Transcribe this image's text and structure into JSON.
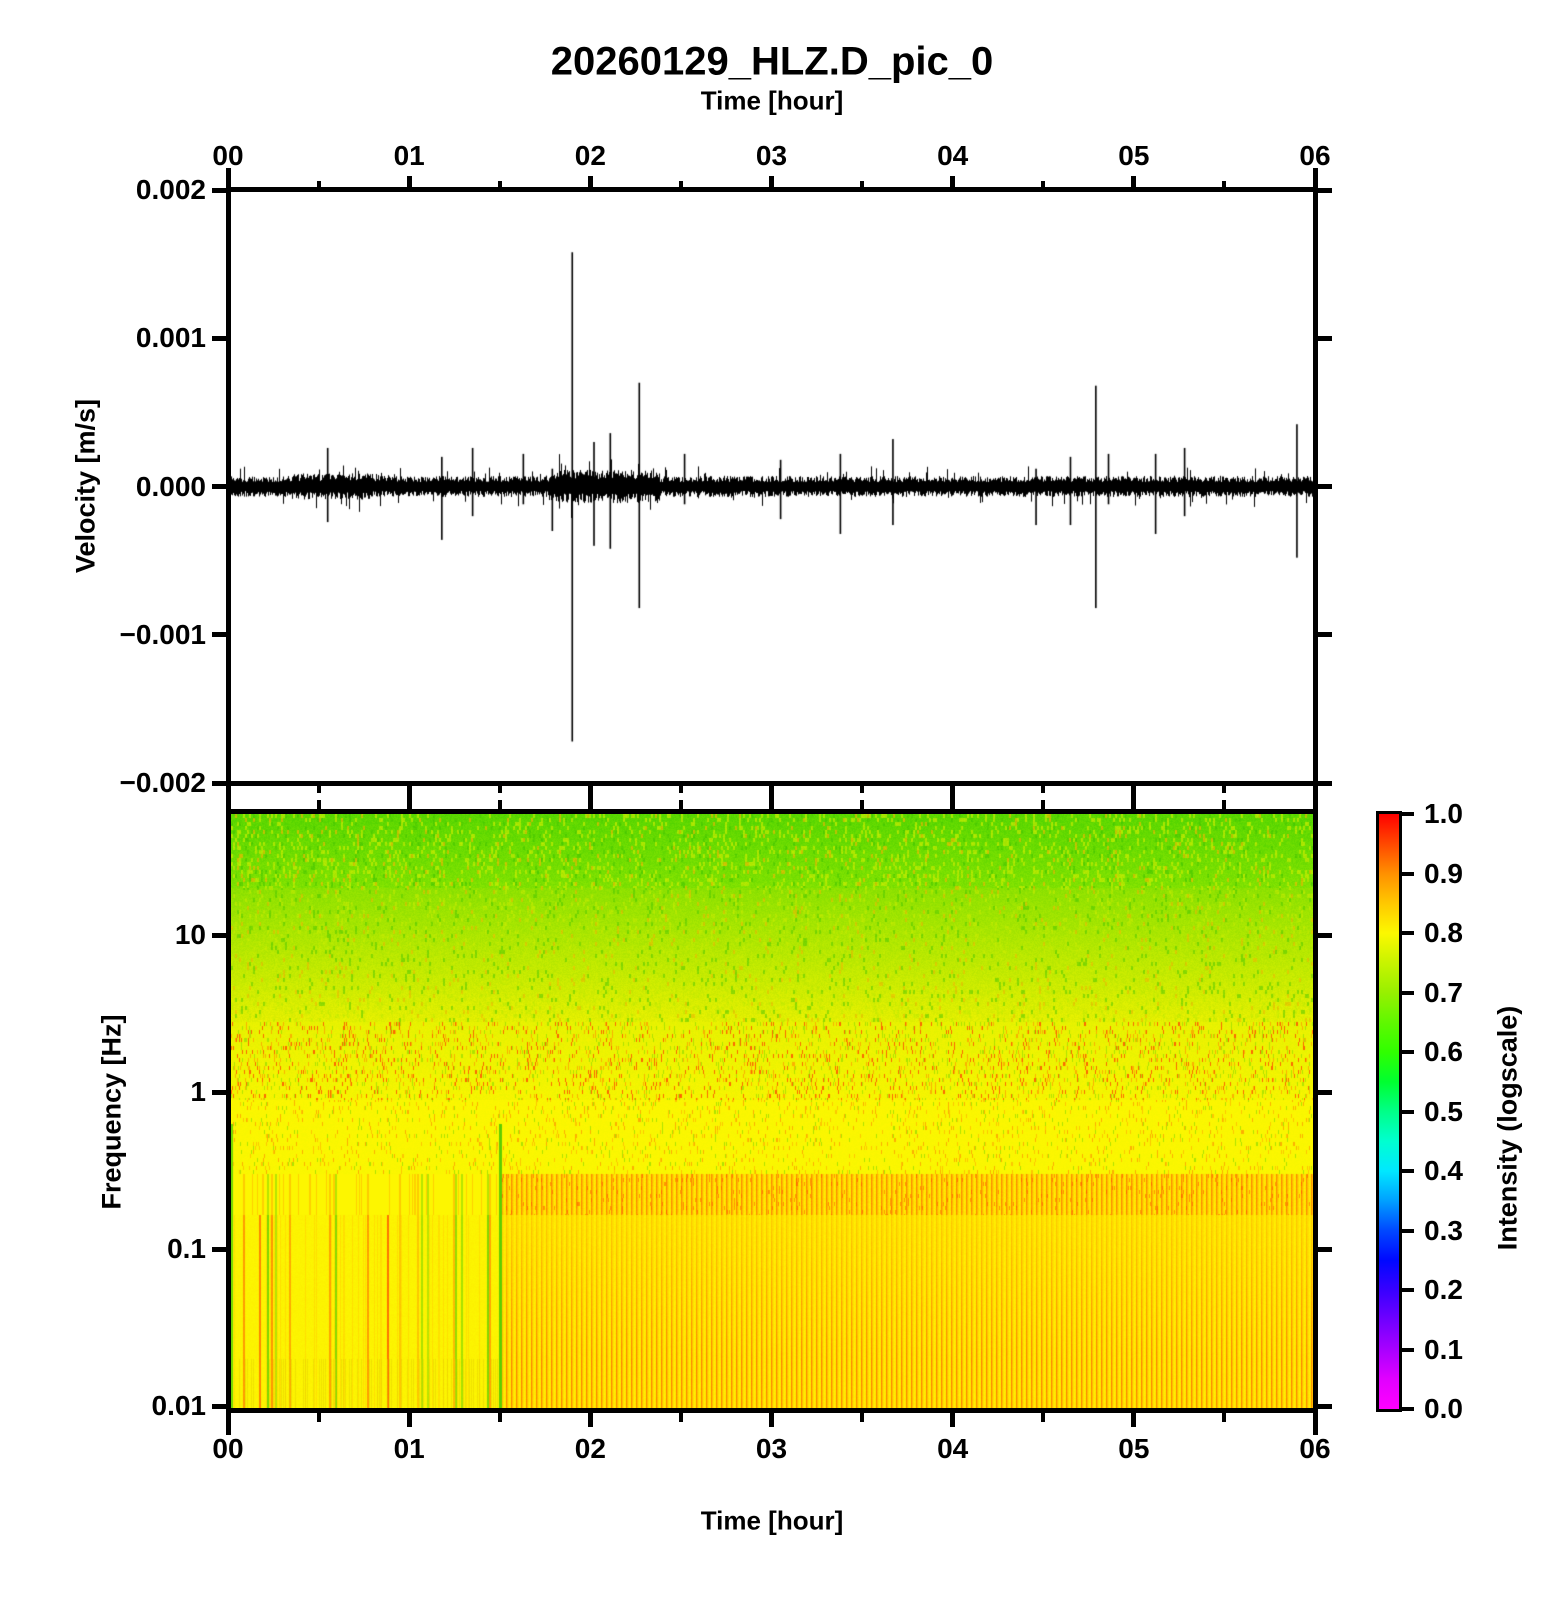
{
  "title": "20260129_HLZ.D_pic_0",
  "axis_labels": {
    "time_top": "Time [hour]",
    "time_bottom": "Time [hour]",
    "velocity": "Velocity [m/s]",
    "frequency": "Frequency [Hz]",
    "intensity": "Intensity (logscale)"
  },
  "hour_ticks": [
    "00",
    "01",
    "02",
    "03",
    "04",
    "05",
    "06"
  ],
  "velocity_ticks": [
    "0.002",
    "0.001",
    "0.000",
    "−0.001",
    "−0.002"
  ],
  "frequency_ticks": [
    "10",
    "1",
    "0.1",
    "0.01"
  ],
  "colorbar_ticks": [
    "1.0",
    "0.9",
    "0.8",
    "0.7",
    "0.6",
    "0.5",
    "0.4",
    "0.3",
    "0.2",
    "0.1",
    "0.0"
  ],
  "colors": {
    "frame": "#000000",
    "background": "#ffffff",
    "trace": "#000000",
    "colormap_stops": [
      [
        0.0,
        "#ff00ff"
      ],
      [
        0.05,
        "#e100ff"
      ],
      [
        0.1,
        "#a800ff"
      ],
      [
        0.15,
        "#7000ff"
      ],
      [
        0.2,
        "#3800ff"
      ],
      [
        0.25,
        "#0008ff"
      ],
      [
        0.3,
        "#0048ff"
      ],
      [
        0.35,
        "#00a0ff"
      ],
      [
        0.4,
        "#00e8ff"
      ],
      [
        0.45,
        "#00ffd0"
      ],
      [
        0.5,
        "#00ff88"
      ],
      [
        0.55,
        "#00ff30"
      ],
      [
        0.6,
        "#30ff00"
      ],
      [
        0.65,
        "#60f800"
      ],
      [
        0.7,
        "#98f000"
      ],
      [
        0.75,
        "#c8f400"
      ],
      [
        0.8,
        "#fcf800"
      ],
      [
        0.85,
        "#ffc800"
      ],
      [
        0.9,
        "#ff9000"
      ],
      [
        0.95,
        "#ff4800"
      ],
      [
        1.0,
        "#ff0000"
      ]
    ],
    "spectrogram": {
      "speckle_light": [
        195,
        235,
        0
      ],
      "speckle_dark": [
        70,
        198,
        0
      ],
      "speckle_orange": [
        235,
        185,
        0
      ],
      "red": [
        255,
        70,
        0
      ],
      "orange": [
        255,
        150,
        0
      ],
      "green_col": [
        110,
        212,
        0
      ],
      "stripe_orange": [
        250,
        135,
        0
      ],
      "stripe_peach": [
        255,
        185,
        0
      ]
    }
  },
  "chart_data": [
    {
      "type": "line",
      "name": "seismogram",
      "xlabel": "Time [hour]",
      "ylabel": "Velocity [m/s]",
      "xlim": [
        0,
        6
      ],
      "ylim": [
        -0.002,
        0.002
      ],
      "x_tick_interval_hours": 1,
      "x_minor_tick_hours": 0.5,
      "y_tick_interval": 0.001,
      "noise_band_m_per_s": 7e-05,
      "noisy_intervals": [
        {
          "t0": 1.78,
          "t1": 2.38,
          "gain": 1.6
        },
        {
          "t0": 0.35,
          "t1": 0.8,
          "gain": 1.25
        }
      ],
      "spikes": [
        {
          "t": 0.55,
          "up": 0.00026,
          "down": -0.00024
        },
        {
          "t": 1.18,
          "up": 0.0002,
          "down": -0.00036
        },
        {
          "t": 1.35,
          "up": 0.00026,
          "down": -0.0002
        },
        {
          "t": 1.63,
          "up": 0.00022,
          "down": -0.00012
        },
        {
          "t": 1.79,
          "up": 0.00012,
          "down": -0.0003
        },
        {
          "t": 1.9,
          "up": 0.00158,
          "down": -0.00172
        },
        {
          "t": 2.02,
          "up": 0.0003,
          "down": -0.0004
        },
        {
          "t": 2.11,
          "up": 0.00036,
          "down": -0.00042
        },
        {
          "t": 2.27,
          "up": 0.0007,
          "down": -0.00082
        },
        {
          "t": 2.52,
          "up": 0.00022,
          "down": -0.00012
        },
        {
          "t": 3.05,
          "up": 0.00018,
          "down": -0.00022
        },
        {
          "t": 3.38,
          "up": 0.00022,
          "down": -0.00032
        },
        {
          "t": 3.67,
          "up": 0.00032,
          "down": -0.00026
        },
        {
          "t": 4.46,
          "up": 0.00012,
          "down": -0.00026
        },
        {
          "t": 4.65,
          "up": 0.0002,
          "down": -0.00026
        },
        {
          "t": 4.79,
          "up": 0.00068,
          "down": -0.00082
        },
        {
          "t": 4.86,
          "up": 0.00022,
          "down": -0.00012
        },
        {
          "t": 5.12,
          "up": 0.00022,
          "down": -0.00032
        },
        {
          "t": 5.28,
          "up": 0.00026,
          "down": -0.0002
        },
        {
          "t": 5.9,
          "up": 0.00042,
          "down": -0.00048
        }
      ]
    },
    {
      "type": "heatmap",
      "name": "spectrogram",
      "xlabel": "Time [hour]",
      "ylabel": "Frequency [Hz]",
      "xlim": [
        0,
        6
      ],
      "ylim": [
        0.01,
        50
      ],
      "yscale": "log",
      "colorbar_label": "Intensity (logscale)",
      "colorbar_range": [
        0,
        1
      ],
      "dominant_intensity": 0.8,
      "transition_hour": 1.5,
      "bands": [
        {
          "f_hz": [
            20,
            50
          ],
          "intensity": [
            0.6,
            0.7
          ],
          "look": "green speckled high-frequency region"
        },
        {
          "f_hz": [
            2,
            20
          ],
          "intensity": [
            0.7,
            0.75
          ],
          "look": "yellow-green gradient with fine speckle"
        },
        {
          "f_hz": [
            1,
            2
          ],
          "intensity": [
            0.75,
            1.0
          ],
          "look": "yellow with red/orange speckle band"
        },
        {
          "f_hz": [
            0.3,
            1
          ],
          "intensity": [
            0.75,
            0.85
          ],
          "look": "yellow with sparse green/orange dashes"
        },
        {
          "f_hz": [
            0.16,
            0.3
          ],
          "intensity": [
            0.8,
            0.92
          ],
          "look": "dense orange vertical stripe band after hour 1.5"
        },
        {
          "f_hz": [
            0.01,
            0.16
          ],
          "intensity": [
            0.75,
            0.9
          ],
          "look": "yellow; sparse green/orange columns before hour 1.5, regular fine orange stripes after"
        }
      ]
    }
  ]
}
